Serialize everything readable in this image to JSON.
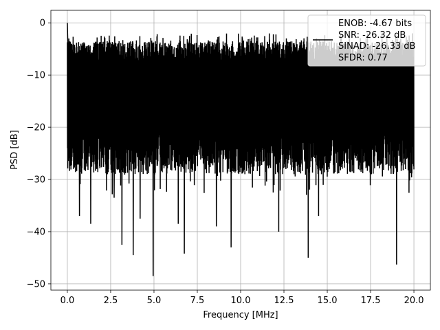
{
  "chart_data": {
    "type": "line",
    "title": "",
    "xlabel": "Frequency [MHz]",
    "ylabel": "PSD [dB]",
    "xlim": [
      -0.95,
      20.95
    ],
    "ylim": [
      -51.2,
      2.4
    ],
    "x_ticks": [
      0.0,
      2.5,
      5.0,
      7.5,
      10.0,
      12.5,
      15.0,
      17.5,
      20.0
    ],
    "x_tick_labels": [
      "0.0",
      "2.5",
      "5.0",
      "7.5",
      "10.0",
      "12.5",
      "15.0",
      "17.5",
      "20.0"
    ],
    "y_ticks": [
      0,
      -10,
      -20,
      -30,
      -40,
      -50
    ],
    "y_tick_labels": [
      "0",
      "−10",
      "−20",
      "−30",
      "−40",
      "−50"
    ],
    "grid": true,
    "legend_placement": "upper-right",
    "legend_lines": [
      "ENOB: -4.67 bits",
      "SNR: -26.32 dB",
      "SINAD: -26.33 dB",
      "SFDR: 0.77"
    ],
    "series": [
      {
        "color": "#000000",
        "x_range": [
          0,
          20
        ],
        "peak_start_db": 0,
        "typical_top_db": -5.5,
        "typical_bottom_db": -25,
        "deep_nulls": [
          {
            "x": 0.7,
            "y": -37
          },
          {
            "x": 1.35,
            "y": -38.5
          },
          {
            "x": 2.7,
            "y": -33.5
          },
          {
            "x": 3.15,
            "y": -42.5
          },
          {
            "x": 3.8,
            "y": -44.5
          },
          {
            "x": 4.2,
            "y": -37.5
          },
          {
            "x": 4.95,
            "y": -48.5
          },
          {
            "x": 6.4,
            "y": -38.5
          },
          {
            "x": 6.75,
            "y": -44.2
          },
          {
            "x": 8.6,
            "y": -39
          },
          {
            "x": 9.45,
            "y": -43
          },
          {
            "x": 12.2,
            "y": -40
          },
          {
            "x": 13.9,
            "y": -45
          },
          {
            "x": 14.5,
            "y": -37
          },
          {
            "x": 19.0,
            "y": -46.3
          }
        ]
      }
    ]
  }
}
